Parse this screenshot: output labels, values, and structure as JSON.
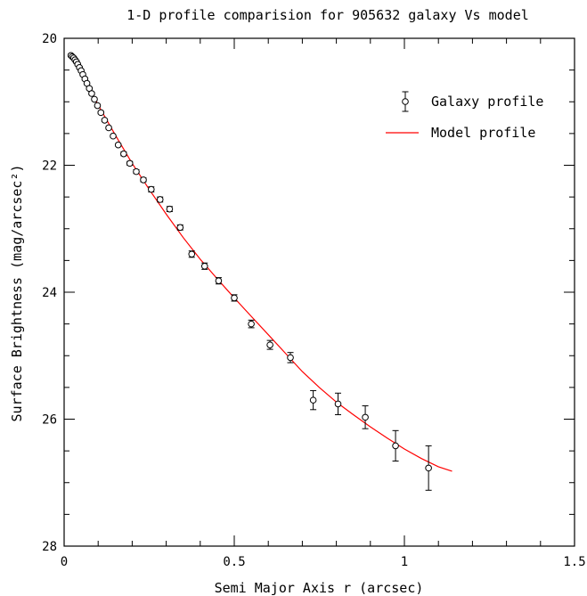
{
  "chart_data": {
    "type": "scatter",
    "title": "1-D profile comparision for 905632 galaxy Vs model",
    "xlabel": "Semi Major Axis r (arcsec)",
    "ylabel": "Surface Brightness (mag/arcsec²)",
    "xlim": [
      0,
      1.5
    ],
    "ylim": [
      20,
      28
    ],
    "y_inverted": true,
    "x_major_ticks": [
      0,
      0.5,
      1,
      1.5
    ],
    "x_tick_labels": [
      "0",
      "0.5",
      "1",
      "1.5"
    ],
    "y_major_ticks": [
      20,
      22,
      24,
      26,
      28
    ],
    "y_tick_labels": [
      "20",
      "22",
      "24",
      "26",
      "28"
    ],
    "legend": {
      "position": "top-right",
      "entries": [
        {
          "label": "Galaxy profile",
          "marker": "open-circle-errorbar"
        },
        {
          "label": "Model profile",
          "marker": "line"
        }
      ]
    },
    "series": [
      {
        "name": "Galaxy profile",
        "kind": "points",
        "color": "#000000",
        "x": [
          0.02,
          0.024,
          0.028,
          0.032,
          0.036,
          0.04,
          0.045,
          0.05,
          0.055,
          0.061,
          0.067,
          0.074,
          0.081,
          0.089,
          0.098,
          0.108,
          0.119,
          0.131,
          0.144,
          0.159,
          0.175,
          0.193,
          0.212,
          0.233,
          0.256,
          0.282,
          0.31,
          0.341,
          0.375,
          0.413,
          0.454,
          0.5,
          0.55,
          0.605,
          0.665,
          0.732,
          0.805,
          0.885,
          0.974,
          1.071
        ],
        "y": [
          20.27,
          20.29,
          20.31,
          20.34,
          20.37,
          20.41,
          20.46,
          20.51,
          20.57,
          20.64,
          20.71,
          20.79,
          20.87,
          20.96,
          21.06,
          21.17,
          21.29,
          21.41,
          21.54,
          21.68,
          21.82,
          21.97,
          22.1,
          22.23,
          22.38,
          22.54,
          22.69,
          22.98,
          23.4,
          23.59,
          23.82,
          24.09,
          24.5,
          24.83,
          25.03,
          25.7,
          25.76,
          25.97,
          26.42,
          26.77
        ],
        "err": [
          0.02,
          0.02,
          0.02,
          0.02,
          0.02,
          0.02,
          0.02,
          0.02,
          0.02,
          0.02,
          0.02,
          0.02,
          0.02,
          0.02,
          0.02,
          0.02,
          0.02,
          0.02,
          0.02,
          0.02,
          0.03,
          0.03,
          0.03,
          0.03,
          0.04,
          0.04,
          0.04,
          0.04,
          0.05,
          0.05,
          0.05,
          0.05,
          0.06,
          0.07,
          0.08,
          0.15,
          0.17,
          0.18,
          0.24,
          0.35
        ]
      },
      {
        "name": "Model profile",
        "kind": "line",
        "color": "#ff0000",
        "x": [
          0.02,
          0.05,
          0.1,
          0.15,
          0.2,
          0.25,
          0.3,
          0.35,
          0.4,
          0.45,
          0.5,
          0.55,
          0.6,
          0.65,
          0.7,
          0.75,
          0.8,
          0.85,
          0.9,
          0.95,
          1.0,
          1.05,
          1.1,
          1.14
        ],
        "y": [
          20.27,
          20.55,
          21.05,
          21.52,
          21.97,
          22.38,
          22.77,
          23.14,
          23.48,
          23.79,
          24.09,
          24.38,
          24.67,
          24.96,
          25.25,
          25.5,
          25.73,
          25.93,
          26.12,
          26.3,
          26.47,
          26.62,
          26.75,
          26.82
        ]
      }
    ]
  }
}
